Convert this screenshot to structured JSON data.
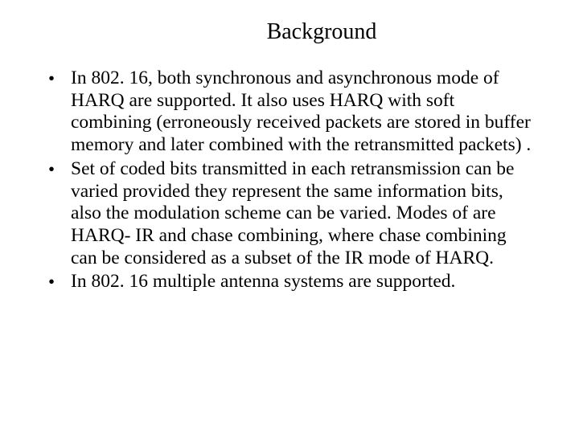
{
  "slide": {
    "title": "Background",
    "bullets": [
      "In 802. 16, both synchronous and asynchronous mode of HARQ are supported. It also uses HARQ with soft combining (erroneously received packets are stored in buffer memory and later combined with the retransmitted packets) .",
      "Set of coded bits transmitted in each retransmission can be varied provided they represent the same information bits, also the modulation scheme can be varied. Modes of are HARQ- IR and chase combining,  where chase combining can be considered as a subset of the IR mode  of HARQ.",
      "In 802. 16 multiple antenna systems are supported."
    ],
    "style": {
      "background_color": "#ffffff",
      "text_color": "#000000",
      "font_family": "Times New Roman",
      "title_fontsize": 28,
      "body_fontsize": 23.5,
      "slide_width": 720,
      "slide_height": 540
    }
  }
}
